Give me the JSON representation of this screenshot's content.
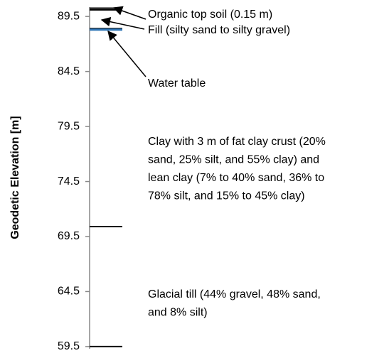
{
  "chart_data": {
    "type": "profile",
    "ylabel": "Geodetic Elevation [m]",
    "ylim": [
      59.3,
      90.35
    ],
    "yticks": [
      {
        "value": 89.5,
        "label": "89.5"
      },
      {
        "value": 84.5,
        "label": "84.5"
      },
      {
        "value": 79.5,
        "label": "79.5"
      },
      {
        "value": 74.5,
        "label": "74.5"
      },
      {
        "value": 69.5,
        "label": "69.5"
      },
      {
        "value": 64.5,
        "label": "64.5"
      },
      {
        "value": 59.5,
        "label": "59.5"
      }
    ],
    "values": [
      90.25,
      90.1,
      88.4,
      88.3,
      70.4,
      59.5
    ],
    "colors": [
      "#000000",
      "#000000",
      "#000000",
      "#2e75b6",
      "#000000",
      "#000000"
    ],
    "annotations": [
      {
        "lines": [
          "Organic top soil (0.15 m)"
        ]
      },
      {
        "lines": [
          "Fill (silty sand to silty gravel)"
        ]
      },
      {
        "lines": [
          "Water table"
        ]
      },
      {
        "lines": [
          "Clay with 3 m of fat clay crust (20%",
          "sand, 25% silt, and 55% clay) and",
          "lean clay (7% to 40% sand, 36% to",
          "78% silt, and 15% to 45% clay)"
        ]
      },
      {
        "lines": [
          "Glacial till (44% gravel, 48% sand,",
          "and 8% silt)"
        ]
      }
    ]
  }
}
